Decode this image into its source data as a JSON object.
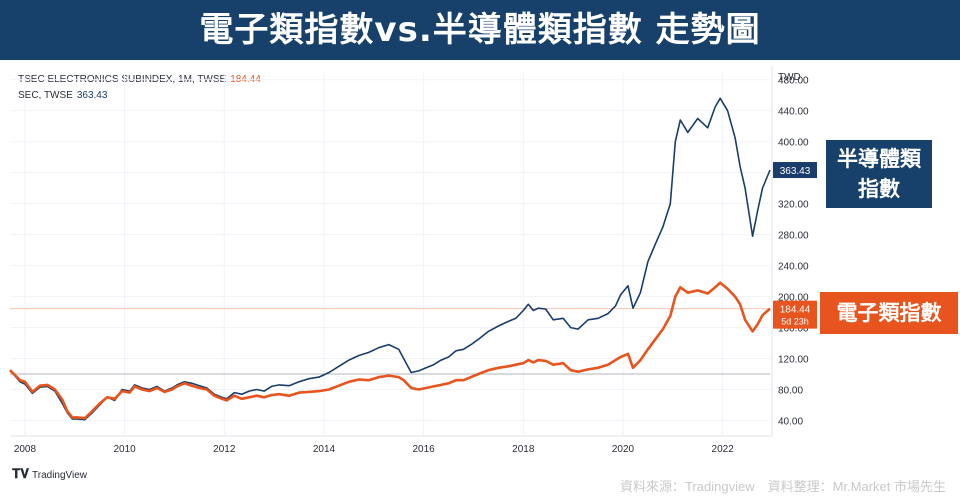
{
  "header": {
    "title": "電子類指數vs.半導體類指數 走勢圖"
  },
  "legend": {
    "elec_name": "TSEC ELECTRONICS SUBINDEX, 1M, TWSE",
    "elec_value": "184.44",
    "semi_name": "SEC, TWSE",
    "semi_value": "363.43"
  },
  "axis_unit": "TWD",
  "labels": {
    "semi_tag": [
      "半導體類",
      "指數"
    ],
    "elec_tag": "電子類指數",
    "semi_price": "363.43",
    "elec_price": "184.44",
    "elec_countdown": "5d 23h"
  },
  "footer": {
    "brand": "TradingView",
    "source": "資料來源：Tradingview　資料整理：Mr.Market 市場先生"
  },
  "colors": {
    "semi": "#1a3d6b",
    "elec": "#e8541d",
    "banner": "#17406b"
  },
  "chart_data": {
    "type": "line",
    "ylabel": "TWD",
    "ylim": [
      20,
      490
    ],
    "yticks": [
      "40.00",
      "80.00",
      "120.00",
      "160.00",
      "200.00",
      "240.00",
      "280.00",
      "320.00",
      "360.00",
      "400.00",
      "440.00",
      "480.00"
    ],
    "xticks": [
      "2008",
      "2010",
      "2012",
      "2014",
      "2016",
      "2018",
      "2020",
      "2022"
    ],
    "xlim": [
      2007.7,
      2022.95
    ],
    "grid": true,
    "series": [
      {
        "name": "TSEC ELECTRONICS SUBINDEX, 1M, TWSE",
        "last_value": 184.44,
        "points": [
          [
            2007.7,
            105
          ],
          [
            2007.9,
            92
          ],
          [
            2008.0,
            90
          ],
          [
            2008.15,
            77
          ],
          [
            2008.3,
            85
          ],
          [
            2008.45,
            86
          ],
          [
            2008.6,
            80
          ],
          [
            2008.75,
            67
          ],
          [
            2008.85,
            52
          ],
          [
            2008.95,
            44
          ],
          [
            2009.05,
            44
          ],
          [
            2009.2,
            43
          ],
          [
            2009.35,
            52
          ],
          [
            2009.5,
            62
          ],
          [
            2009.65,
            70
          ],
          [
            2009.8,
            68
          ],
          [
            2009.95,
            78
          ],
          [
            2010.1,
            76
          ],
          [
            2010.2,
            84
          ],
          [
            2010.35,
            80
          ],
          [
            2010.5,
            78
          ],
          [
            2010.65,
            82
          ],
          [
            2010.8,
            77
          ],
          [
            2010.95,
            80
          ],
          [
            2011.05,
            84
          ],
          [
            2011.2,
            88
          ],
          [
            2011.35,
            85
          ],
          [
            2011.5,
            82
          ],
          [
            2011.65,
            80
          ],
          [
            2011.8,
            72
          ],
          [
            2011.95,
            68
          ],
          [
            2012.05,
            66
          ],
          [
            2012.2,
            72
          ],
          [
            2012.35,
            68
          ],
          [
            2012.5,
            70
          ],
          [
            2012.65,
            72
          ],
          [
            2012.8,
            70
          ],
          [
            2012.95,
            73
          ],
          [
            2013.1,
            74
          ],
          [
            2013.3,
            72
          ],
          [
            2013.5,
            76
          ],
          [
            2013.7,
            77
          ],
          [
            2013.9,
            78
          ],
          [
            2014.1,
            80
          ],
          [
            2014.3,
            85
          ],
          [
            2014.5,
            90
          ],
          [
            2014.7,
            93
          ],
          [
            2014.9,
            92
          ],
          [
            2015.1,
            96
          ],
          [
            2015.3,
            98
          ],
          [
            2015.5,
            96
          ],
          [
            2015.6,
            92
          ],
          [
            2015.75,
            82
          ],
          [
            2015.9,
            80
          ],
          [
            2016.05,
            82
          ],
          [
            2016.2,
            84
          ],
          [
            2016.35,
            86
          ],
          [
            2016.5,
            88
          ],
          [
            2016.65,
            92
          ],
          [
            2016.8,
            92
          ],
          [
            2016.95,
            96
          ],
          [
            2017.1,
            100
          ],
          [
            2017.3,
            105
          ],
          [
            2017.5,
            108
          ],
          [
            2017.7,
            110
          ],
          [
            2017.85,
            112
          ],
          [
            2018.0,
            114
          ],
          [
            2018.1,
            118
          ],
          [
            2018.2,
            115
          ],
          [
            2018.3,
            118
          ],
          [
            2018.45,
            117
          ],
          [
            2018.6,
            112
          ],
          [
            2018.8,
            114
          ],
          [
            2018.95,
            105
          ],
          [
            2019.1,
            103
          ],
          [
            2019.3,
            106
          ],
          [
            2019.5,
            108
          ],
          [
            2019.7,
            112
          ],
          [
            2019.85,
            118
          ],
          [
            2019.95,
            122
          ],
          [
            2020.1,
            126
          ],
          [
            2020.2,
            108
          ],
          [
            2020.35,
            118
          ],
          [
            2020.5,
            132
          ],
          [
            2020.65,
            145
          ],
          [
            2020.8,
            158
          ],
          [
            2020.95,
            175
          ],
          [
            2021.05,
            200
          ],
          [
            2021.15,
            212
          ],
          [
            2021.3,
            205
          ],
          [
            2021.5,
            208
          ],
          [
            2021.7,
            204
          ],
          [
            2021.85,
            212
          ],
          [
            2021.95,
            218
          ],
          [
            2022.1,
            210
          ],
          [
            2022.25,
            200
          ],
          [
            2022.35,
            190
          ],
          [
            2022.45,
            170
          ],
          [
            2022.6,
            155
          ],
          [
            2022.7,
            164
          ],
          [
            2022.8,
            176
          ],
          [
            2022.95,
            184.44
          ]
        ]
      },
      {
        "name": "SEC, TWSE",
        "last_value": 363.43,
        "points": [
          [
            2007.7,
            105
          ],
          [
            2007.9,
            90
          ],
          [
            2008.0,
            87
          ],
          [
            2008.15,
            75
          ],
          [
            2008.3,
            83
          ],
          [
            2008.45,
            84
          ],
          [
            2008.6,
            78
          ],
          [
            2008.75,
            62
          ],
          [
            2008.85,
            50
          ],
          [
            2008.95,
            42
          ],
          [
            2009.05,
            42
          ],
          [
            2009.2,
            41
          ],
          [
            2009.35,
            50
          ],
          [
            2009.5,
            60
          ],
          [
            2009.65,
            70
          ],
          [
            2009.8,
            66
          ],
          [
            2009.95,
            80
          ],
          [
            2010.1,
            78
          ],
          [
            2010.2,
            86
          ],
          [
            2010.35,
            82
          ],
          [
            2010.5,
            80
          ],
          [
            2010.65,
            84
          ],
          [
            2010.8,
            78
          ],
          [
            2010.95,
            82
          ],
          [
            2011.05,
            86
          ],
          [
            2011.2,
            90
          ],
          [
            2011.35,
            88
          ],
          [
            2011.5,
            85
          ],
          [
            2011.65,
            82
          ],
          [
            2011.8,
            74
          ],
          [
            2011.95,
            70
          ],
          [
            2012.05,
            68
          ],
          [
            2012.2,
            76
          ],
          [
            2012.35,
            74
          ],
          [
            2012.5,
            78
          ],
          [
            2012.65,
            80
          ],
          [
            2012.8,
            78
          ],
          [
            2012.95,
            84
          ],
          [
            2013.1,
            86
          ],
          [
            2013.3,
            85
          ],
          [
            2013.5,
            90
          ],
          [
            2013.7,
            94
          ],
          [
            2013.9,
            96
          ],
          [
            2014.1,
            102
          ],
          [
            2014.3,
            110
          ],
          [
            2014.5,
            118
          ],
          [
            2014.7,
            124
          ],
          [
            2014.9,
            128
          ],
          [
            2015.1,
            134
          ],
          [
            2015.3,
            138
          ],
          [
            2015.5,
            132
          ],
          [
            2015.6,
            120
          ],
          [
            2015.75,
            102
          ],
          [
            2015.9,
            104
          ],
          [
            2016.05,
            108
          ],
          [
            2016.2,
            112
          ],
          [
            2016.35,
            118
          ],
          [
            2016.5,
            122
          ],
          [
            2016.65,
            130
          ],
          [
            2016.8,
            132
          ],
          [
            2016.95,
            138
          ],
          [
            2017.1,
            145
          ],
          [
            2017.3,
            155
          ],
          [
            2017.5,
            162
          ],
          [
            2017.7,
            168
          ],
          [
            2017.85,
            172
          ],
          [
            2018.0,
            182
          ],
          [
            2018.1,
            190
          ],
          [
            2018.2,
            182
          ],
          [
            2018.3,
            185
          ],
          [
            2018.45,
            184
          ],
          [
            2018.6,
            170
          ],
          [
            2018.8,
            172
          ],
          [
            2018.95,
            160
          ],
          [
            2019.1,
            158
          ],
          [
            2019.3,
            170
          ],
          [
            2019.5,
            172
          ],
          [
            2019.7,
            178
          ],
          [
            2019.85,
            188
          ],
          [
            2019.95,
            202
          ],
          [
            2020.1,
            214
          ],
          [
            2020.2,
            185
          ],
          [
            2020.35,
            205
          ],
          [
            2020.5,
            245
          ],
          [
            2020.65,
            268
          ],
          [
            2020.8,
            290
          ],
          [
            2020.95,
            320
          ],
          [
            2021.05,
            400
          ],
          [
            2021.15,
            428
          ],
          [
            2021.3,
            412
          ],
          [
            2021.5,
            430
          ],
          [
            2021.7,
            418
          ],
          [
            2021.85,
            445
          ],
          [
            2021.95,
            456
          ],
          [
            2022.1,
            440
          ],
          [
            2022.25,
            405
          ],
          [
            2022.35,
            368
          ],
          [
            2022.45,
            340
          ],
          [
            2022.6,
            278
          ],
          [
            2022.7,
            310
          ],
          [
            2022.8,
            340
          ],
          [
            2022.95,
            363.43
          ]
        ]
      }
    ],
    "reference_line": 100
  }
}
